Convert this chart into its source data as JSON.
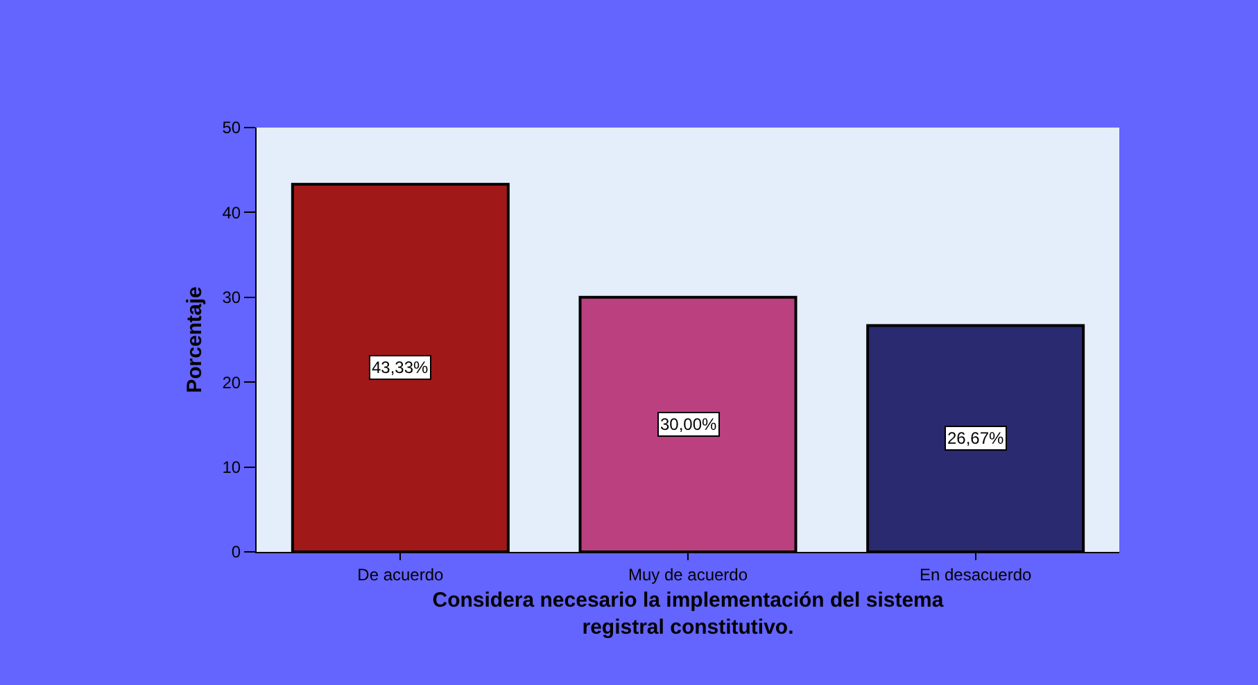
{
  "chart_data": {
    "type": "bar",
    "xlabel": "Considera necesario la implementación del sistema\nregistral constitutivo.",
    "ylabel": "Porcentaje",
    "categories": [
      "De acuerdo",
      "Muy de acuerdo",
      "En desacuerdo"
    ],
    "values": [
      43.33,
      30.0,
      26.67
    ],
    "colors": [
      "#a01818",
      "#bb4080",
      "#2a2a70"
    ],
    "value_labels": [
      "43,33%",
      "30,00%",
      "26,67%"
    ],
    "ylim": [
      0,
      50
    ],
    "yticks": [
      0,
      10,
      20,
      30,
      40,
      50
    ],
    "grid": false,
    "legend": false
  }
}
